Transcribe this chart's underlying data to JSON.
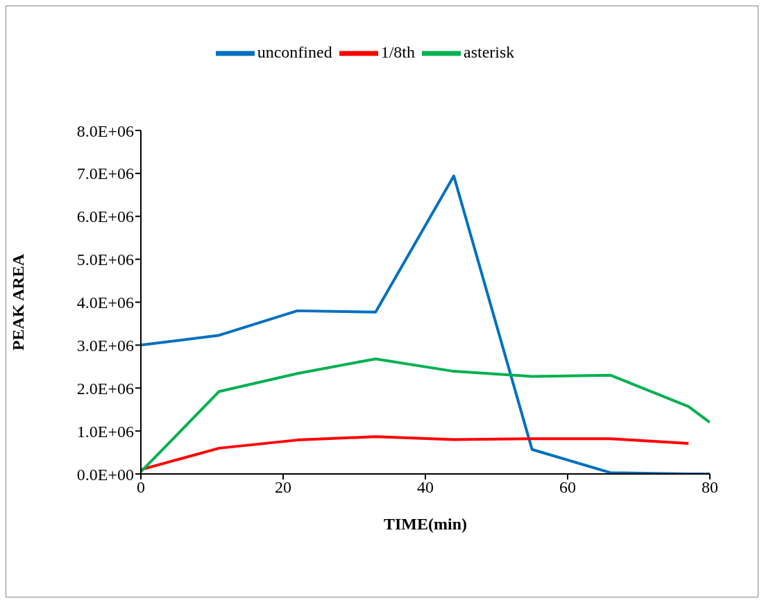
{
  "chart_data": {
    "type": "line",
    "xlabel": "TIME(min)",
    "ylabel": "PEAK AREA",
    "xlim": [
      0,
      80
    ],
    "xticks": [
      0,
      20,
      40,
      60,
      80
    ],
    "ylim": [
      0,
      8000000
    ],
    "yticks": [
      {
        "value": 0,
        "label": "0.0E+00"
      },
      {
        "value": 1000000,
        "label": "1.0E+06"
      },
      {
        "value": 2000000,
        "label": "2.0E+06"
      },
      {
        "value": 3000000,
        "label": "3.0E+06"
      },
      {
        "value": 4000000,
        "label": "4.0E+06"
      },
      {
        "value": 5000000,
        "label": "5.0E+06"
      },
      {
        "value": 6000000,
        "label": "6.0E+06"
      },
      {
        "value": 7000000,
        "label": "7.0E+06"
      },
      {
        "value": 8000000,
        "label": "8.0E+06"
      }
    ],
    "grid": false,
    "legend": "top",
    "marker": "none",
    "line_style": "solid",
    "series": [
      {
        "name": "unconfined",
        "color": "#0070c0",
        "x": [
          0,
          11,
          22,
          33,
          44,
          55,
          66,
          77,
          80
        ],
        "values": [
          3000000,
          3230000,
          3800000,
          3770000,
          6940000,
          570000,
          30000,
          0,
          0
        ]
      },
      {
        "name": "1/8th",
        "color": "#ff0000",
        "x": [
          0,
          11,
          22,
          33,
          44,
          55,
          66,
          77
        ],
        "values": [
          100000,
          600000,
          790000,
          870000,
          800000,
          820000,
          820000,
          710000
        ]
      },
      {
        "name": "asterisk",
        "color": "#00b050",
        "x": [
          0,
          11,
          22,
          33,
          44,
          55,
          66,
          77,
          80
        ],
        "values": [
          50000,
          1920000,
          2340000,
          2680000,
          2390000,
          2270000,
          2300000,
          1570000,
          1200000
        ]
      }
    ]
  }
}
